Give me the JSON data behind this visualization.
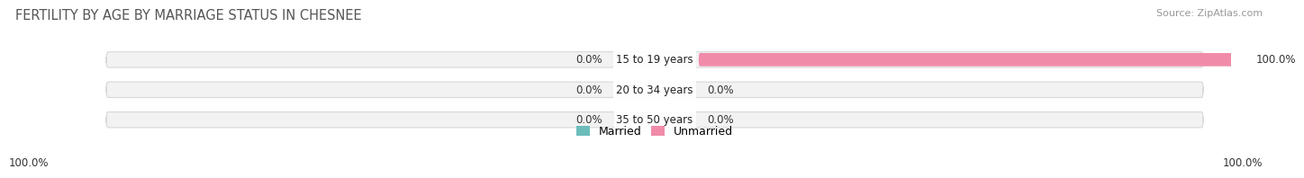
{
  "title": "FERTILITY BY AGE BY MARRIAGE STATUS IN CHESNEE",
  "source": "Source: ZipAtlas.com",
  "categories": [
    "15 to 19 years",
    "20 to 34 years",
    "35 to 50 years"
  ],
  "married_vals": [
    0.0,
    0.0,
    0.0
  ],
  "unmarried_vals": [
    100.0,
    0.0,
    0.0
  ],
  "married_color": "#6cbcbc",
  "unmarried_color": "#f08caa",
  "bar_bg_color": "#f2f2f2",
  "bar_bg_edge_color": "#d8d8d8",
  "title_fontsize": 10.5,
  "label_fontsize": 8.5,
  "legend_fontsize": 9,
  "source_fontsize": 8,
  "figsize": [
    14.06,
    1.96
  ],
  "dpi": 100
}
